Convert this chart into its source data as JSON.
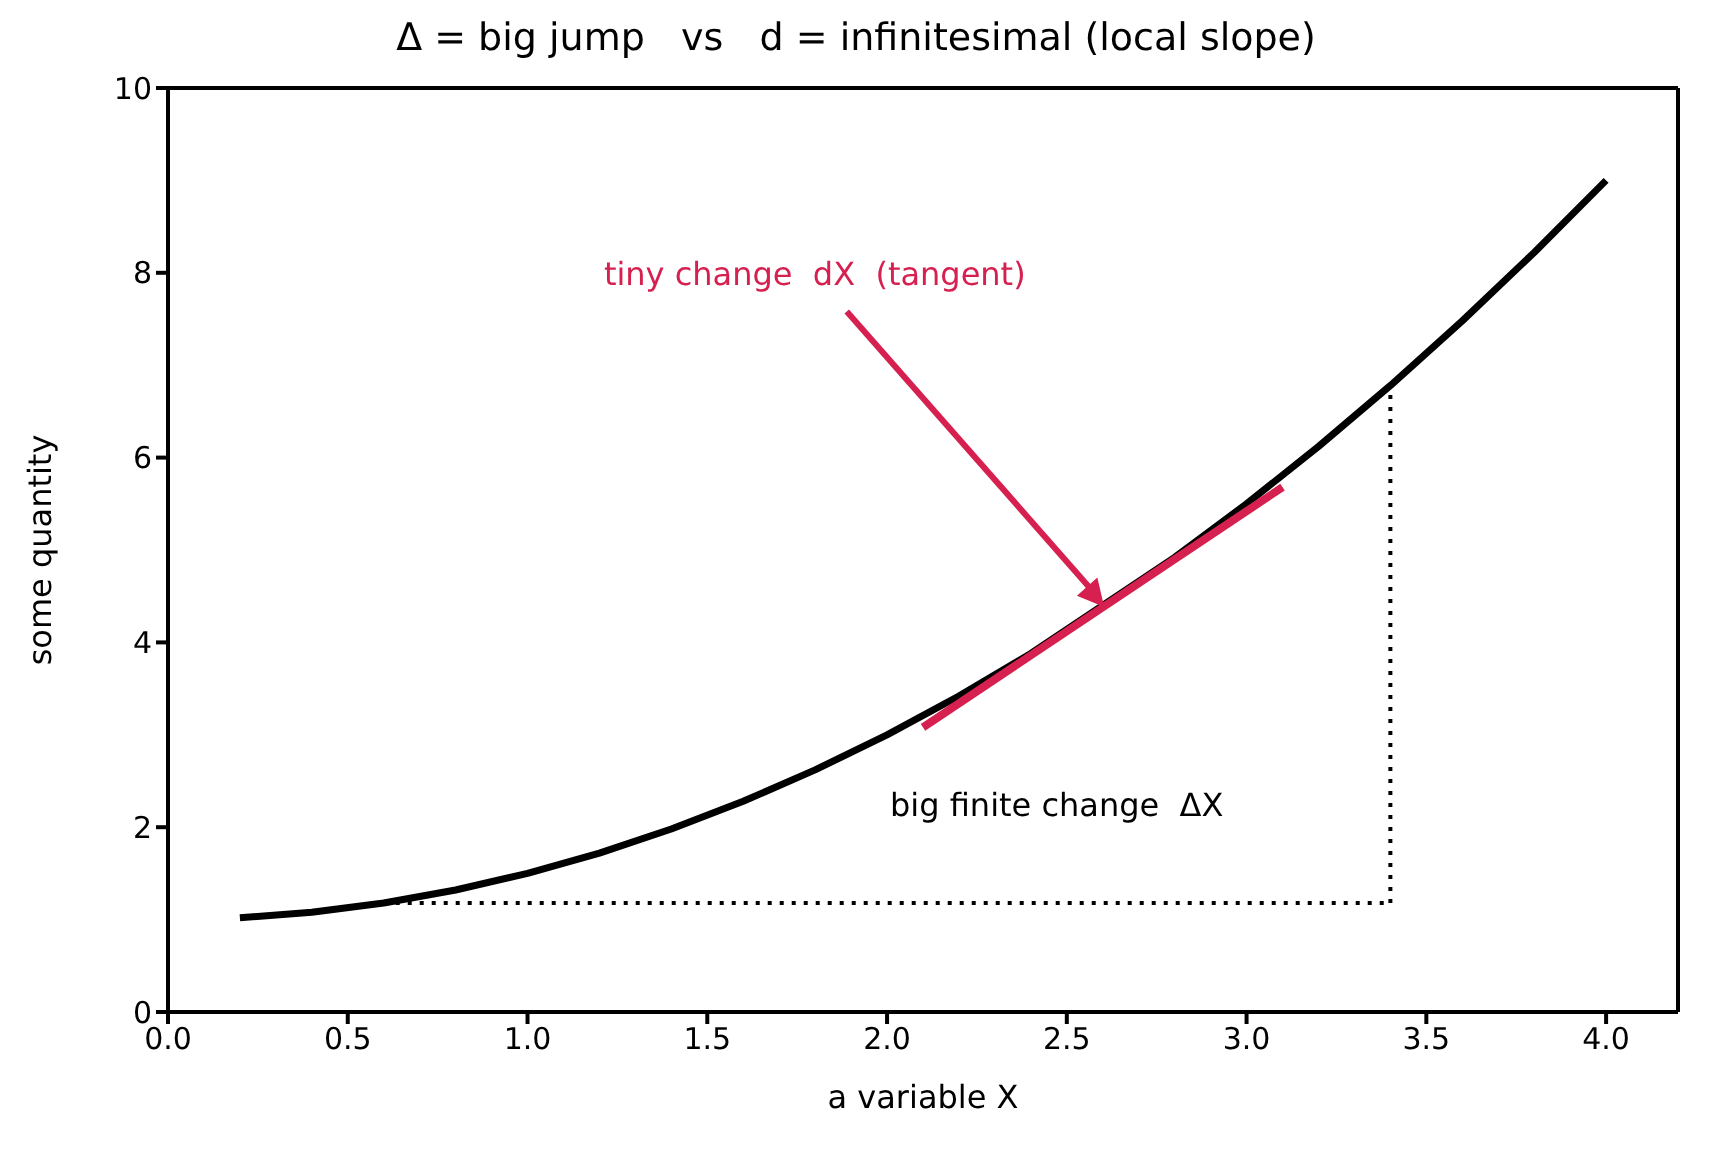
{
  "chart_data": {
    "type": "line",
    "title": "Δ = big jump   vs   d = infinitesimal (local slope)",
    "xlabel": "a variable X",
    "ylabel": "some quantity",
    "xlim": [
      0,
      4.2
    ],
    "xticks": [
      {
        "value": 0,
        "label": "0.0"
      },
      {
        "value": 0.5,
        "label": "0.5"
      },
      {
        "value": 1,
        "label": "1.0"
      },
      {
        "value": 1.5,
        "label": "1.5"
      },
      {
        "value": 2,
        "label": "2.0"
      },
      {
        "value": 2.5,
        "label": "2.5"
      },
      {
        "value": 3,
        "label": "3.0"
      },
      {
        "value": 3.5,
        "label": "3.5"
      },
      {
        "value": 4,
        "label": "4.0"
      }
    ],
    "ylim": [
      0,
      10
    ],
    "yticks": [
      0,
      2,
      4,
      6,
      8,
      10
    ],
    "marker": "none",
    "series": [
      {
        "color": "#000000",
        "line_style": "solid",
        "x": [
          0.2,
          0.4,
          0.6,
          0.8,
          1.0,
          1.2,
          1.4,
          1.6,
          1.8,
          2.0,
          2.2,
          2.4,
          2.6,
          2.8,
          3.0,
          3.2,
          3.4,
          3.6,
          3.8,
          4.0
        ],
        "values": [
          1.02,
          1.08,
          1.18,
          1.32,
          1.5,
          1.72,
          1.98,
          2.28,
          2.62,
          3.0,
          3.42,
          3.88,
          null,
          4.92,
          5.5,
          6.12,
          6.78,
          7.48,
          8.22,
          9.0
        ]
      },
      {
        "color": "#d62050",
        "line_style": "solid",
        "x": [
          2.1,
          3.1
        ],
        "values": [
          3.08,
          5.68
        ]
      },
      {
        "color": "#000000",
        "line_style": "dotted",
        "x": [
          0.6,
          3.4
        ],
        "values": [
          1.18,
          1.18
        ]
      },
      {
        "color": "#000000",
        "line_style": "dotted",
        "x": [
          3.4,
          3.4
        ],
        "values": [
          1.18,
          6.78
        ]
      }
    ],
    "annotations": [
      {
        "text": "tiny change  dX  (tangent)",
        "x": 2.6,
        "y": 4.4
      },
      "big finite change  ΔX"
    ]
  }
}
